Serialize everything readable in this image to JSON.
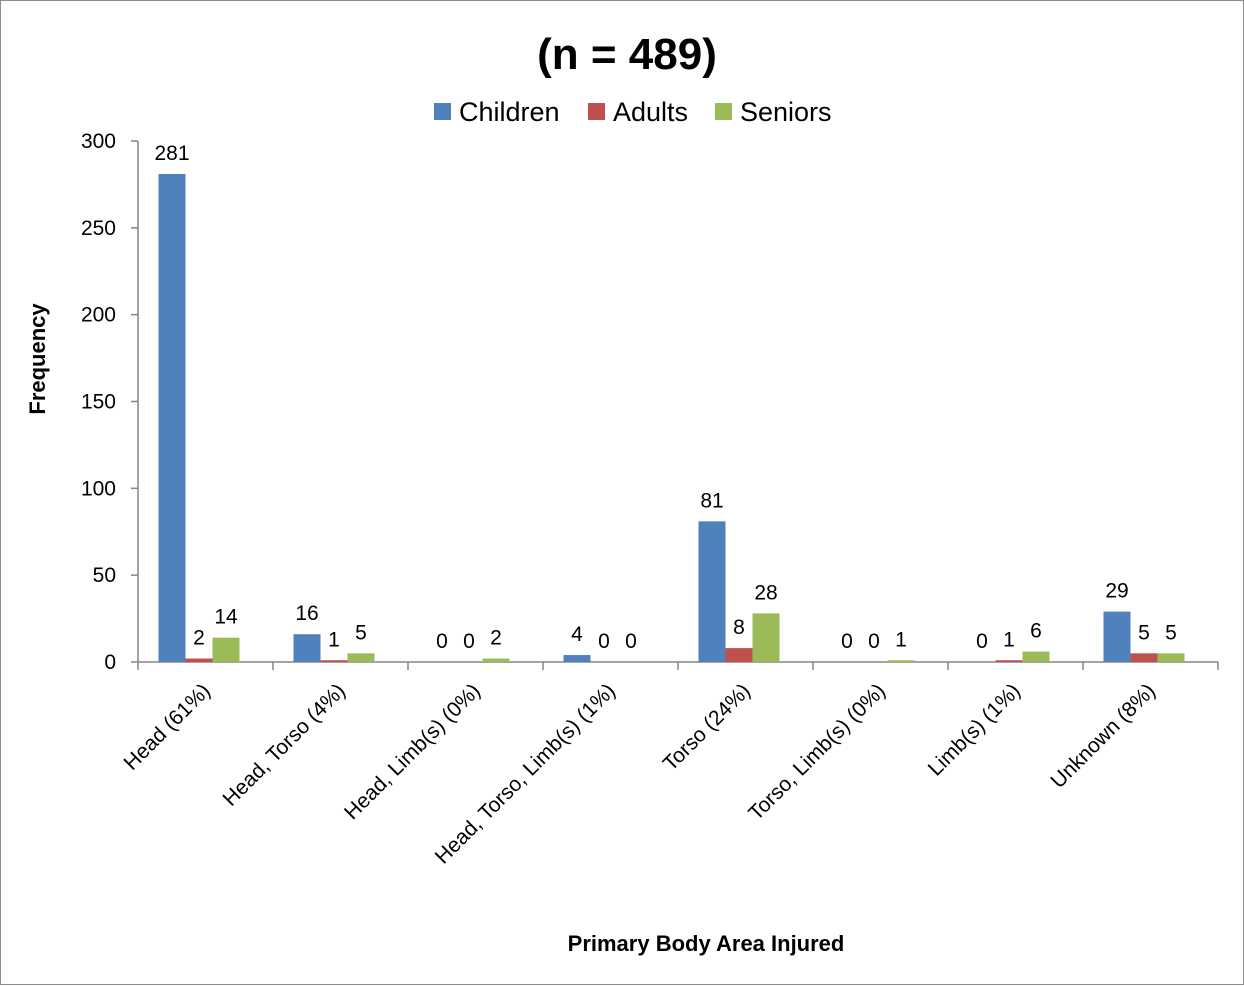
{
  "chart_data": {
    "type": "bar",
    "title": "(n = 489)",
    "xlabel": "Primary Body Area Injured",
    "ylabel": "Frequency",
    "ylim": [
      0,
      300
    ],
    "yticks": [
      0,
      50,
      100,
      150,
      200,
      250,
      300
    ],
    "grid": false,
    "legend_position": "top",
    "categories": [
      "Head  (61%)",
      "Head, Torso  (4%)",
      "Head, Limb(s)  (0%)",
      "Head, Torso, Limb(s)  (1%)",
      "Torso  (24%)",
      "Torso, Limb(s)  (0%)",
      "Limb(s)  (1%)",
      "Unknown  (8%)"
    ],
    "series": [
      {
        "name": "Children",
        "color": "#4F81BD",
        "values": [
          281,
          16,
          0,
          4,
          81,
          0,
          0,
          29
        ]
      },
      {
        "name": "Adults",
        "color": "#C0504D",
        "values": [
          2,
          1,
          0,
          0,
          8,
          0,
          1,
          5
        ]
      },
      {
        "name": "Seniors",
        "color": "#9BBB59",
        "values": [
          14,
          5,
          2,
          0,
          28,
          1,
          6,
          5
        ]
      }
    ]
  }
}
